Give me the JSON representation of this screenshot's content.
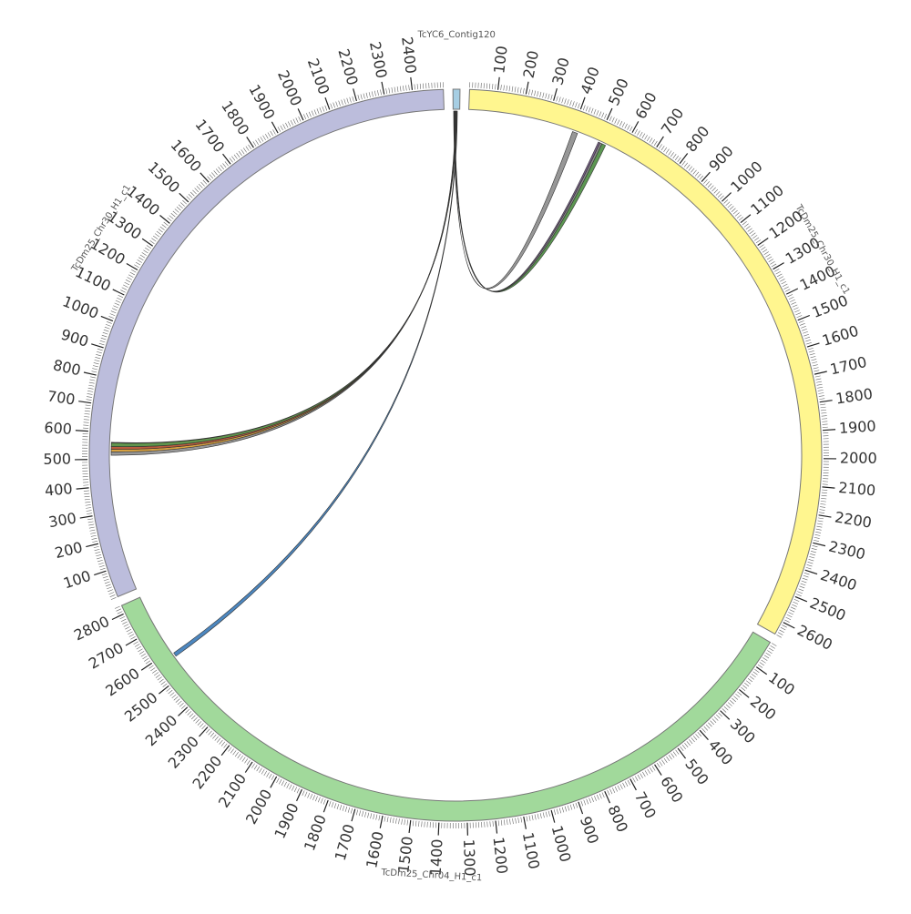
{
  "chart_data": {
    "type": "circos",
    "minor_tick_step": 10,
    "segments": [
      {
        "name": "TcYC6_Contig120",
        "length": 25,
        "color": "#a6cee3",
        "ticks": []
      },
      {
        "name": "TcDm25_Chr30_H1_c1",
        "length": 2650,
        "color": "#fff68f",
        "ticks": [
          100,
          200,
          300,
          400,
          500,
          600,
          700,
          800,
          900,
          1000,
          1100,
          1200,
          1300,
          1400,
          1500,
          1600,
          1700,
          1800,
          1900,
          2000,
          2100,
          2200,
          2300,
          2400,
          2500,
          2600
        ]
      },
      {
        "name": "TcDm25_Chr04_H1_c1",
        "length": 2830,
        "color": "#a1d99b",
        "ticks": [
          100,
          200,
          300,
          400,
          500,
          600,
          700,
          800,
          900,
          1000,
          1100,
          1200,
          1300,
          1400,
          1500,
          1600,
          1700,
          1800,
          1900,
          2000,
          2100,
          2200,
          2300,
          2400,
          2500,
          2600,
          2700,
          2800
        ]
      },
      {
        "name": "TcDm25_Chr30_H1_c1",
        "length": 2510,
        "color": "#bcbddc",
        "ticks": [
          100,
          200,
          300,
          400,
          500,
          600,
          700,
          800,
          900,
          1000,
          1100,
          1200,
          1300,
          1400,
          1500,
          1600,
          1700,
          1800,
          1900,
          2000,
          2100,
          2200,
          2300,
          2400
        ]
      }
    ],
    "links": [
      {
        "source": {
          "segment": 0,
          "start": 2,
          "end": 4
        },
        "target": {
          "segment": 1,
          "start": 400,
          "end": 420
        },
        "color": "#8c8c8c"
      },
      {
        "source": {
          "segment": 0,
          "start": 4,
          "end": 5
        },
        "target": {
          "segment": 1,
          "start": 505,
          "end": 512
        },
        "color": "#6a4c7e"
      },
      {
        "source": {
          "segment": 0,
          "start": 5,
          "end": 6
        },
        "target": {
          "segment": 1,
          "start": 512,
          "end": 520
        },
        "color": "#7f7f7f"
      },
      {
        "source": {
          "segment": 0,
          "start": 6,
          "end": 7
        },
        "target": {
          "segment": 1,
          "start": 520,
          "end": 535
        },
        "color": "#4a8c3f"
      },
      {
        "source": {
          "segment": 0,
          "start": 8,
          "end": 9
        },
        "target": {
          "segment": 3,
          "start": 515,
          "end": 528
        },
        "color": "#8c8c8c"
      },
      {
        "source": {
          "segment": 0,
          "start": 9,
          "end": 10
        },
        "target": {
          "segment": 3,
          "start": 528,
          "end": 538
        },
        "color": "#d69a2d"
      },
      {
        "source": {
          "segment": 0,
          "start": 10,
          "end": 11
        },
        "target": {
          "segment": 3,
          "start": 538,
          "end": 548
        },
        "color": "#b24a2a"
      },
      {
        "source": {
          "segment": 0,
          "start": 11,
          "end": 12
        },
        "target": {
          "segment": 3,
          "start": 548,
          "end": 562
        },
        "color": "#4f8a3a"
      },
      {
        "source": {
          "segment": 0,
          "start": 12,
          "end": 13
        },
        "target": {
          "segment": 3,
          "start": 562,
          "end": 564
        },
        "color": "#c9a800"
      },
      {
        "source": {
          "segment": 0,
          "start": 14,
          "end": 16
        },
        "target": {
          "segment": 2,
          "start": 2570,
          "end": 2585
        },
        "color": "#3a7ab8"
      }
    ]
  }
}
